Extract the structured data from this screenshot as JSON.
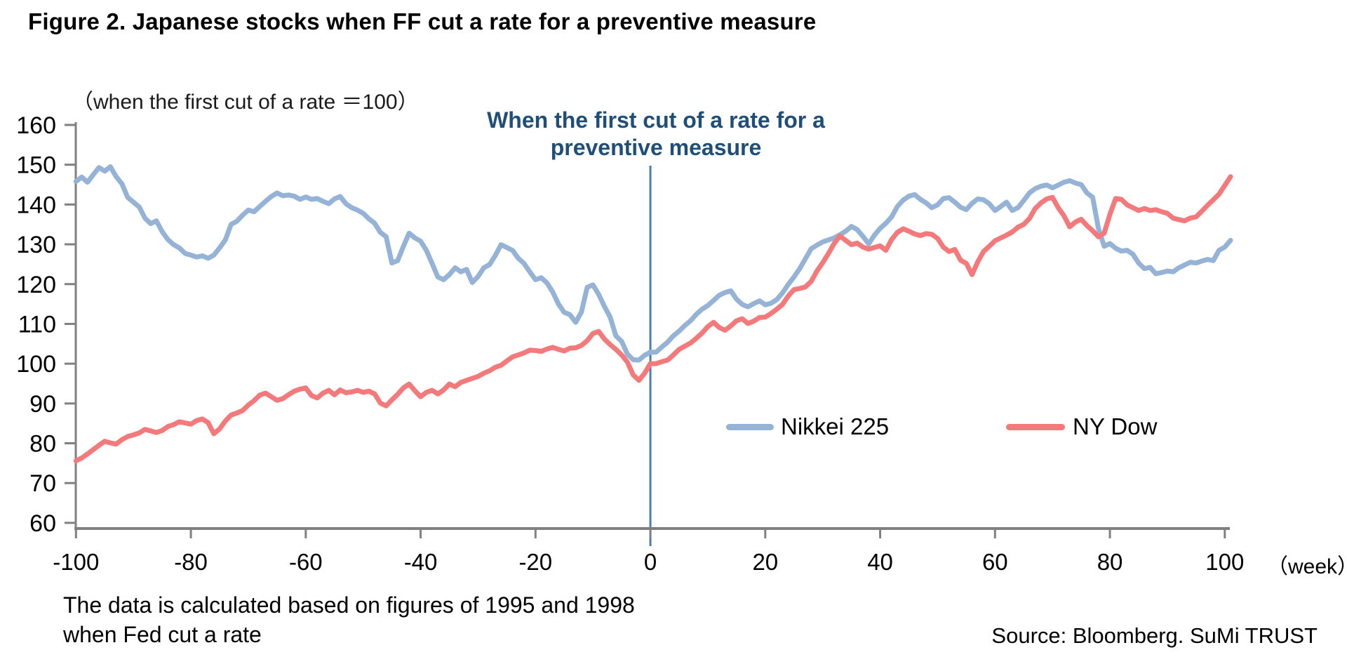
{
  "title": "Figure 2. Japanese stocks when FF cut a rate for a preventive measure",
  "axis_unit_label": "（when the first cut of a rate ＝100）",
  "annotation": {
    "line1": "When the first cut of a rate for a",
    "line2": "preventive measure"
  },
  "week_axis_label": "（week）",
  "footnote": {
    "line1": "The data is calculated based on figures of 1995 and 1998",
    "line2": "when Fed cut a rate"
  },
  "source": "Source: Bloomberg. SuMi TRUST",
  "legend": [
    {
      "label": "Nikkei 225",
      "color": "#95B3D7"
    },
    {
      "label": "NY Dow",
      "color": "#F4797B"
    }
  ],
  "colors": {
    "nikkei_line": "#95B3D7",
    "dow_line": "#F4797B",
    "event_line": "#4A7DB5",
    "axis": "#808080",
    "annotation_text": "#1F4E79",
    "tick_text": "#000000"
  },
  "chart_data": {
    "type": "line",
    "title": "Figure 2. Japanese stocks when FF cut a rate for a preventive measure",
    "xlabel": "week",
    "ylabel": "index (when the first cut of a rate = 100)",
    "xlim": [
      -100,
      100
    ],
    "ylim": [
      60,
      160
    ],
    "x_ticks": [
      -100,
      -80,
      -60,
      -40,
      -20,
      0,
      20,
      40,
      60,
      80,
      100
    ],
    "y_ticks": [
      60,
      70,
      80,
      90,
      100,
      110,
      120,
      130,
      140,
      150,
      160
    ],
    "grid": false,
    "legend_position": "center-right",
    "event_line_x": 0,
    "x_start": -100,
    "x_step": 1,
    "series": [
      {
        "name": "Nikkei 225",
        "color": "#95B3D7",
        "values": [
          145.8,
          146.9,
          145.6,
          147.5,
          149.3,
          148.4,
          149.5,
          147.0,
          145.2,
          141.8,
          140.6,
          139.4,
          136.6,
          135.2,
          135.9,
          133.2,
          131.2,
          129.9,
          129.1,
          127.7,
          127.3,
          126.8,
          127.1,
          126.5,
          127.3,
          129.1,
          131.1,
          135.0,
          135.8,
          137.3,
          138.6,
          138.2,
          139.5,
          140.8,
          142.0,
          142.9,
          142.2,
          142.4,
          142.1,
          141.3,
          141.9,
          141.3,
          141.5,
          140.8,
          140.2,
          141.4,
          142.0,
          140.2,
          139.2,
          138.6,
          137.8,
          136.4,
          135.3,
          133.0,
          131.9,
          125.3,
          125.9,
          129.5,
          132.8,
          131.6,
          130.8,
          128.5,
          125.2,
          121.8,
          121.1,
          122.4,
          124.1,
          123.1,
          123.7,
          120.4,
          121.9,
          124.1,
          124.9,
          127.2,
          129.9,
          129.2,
          128.5,
          126.5,
          125.2,
          123.1,
          121.1,
          121.6,
          120.3,
          118.0,
          115.0,
          112.9,
          112.3,
          110.4,
          113.0,
          119.2,
          119.8,
          117.4,
          114.4,
          111.7,
          107.0,
          105.6,
          102.4,
          101.0,
          100.9,
          102.1,
          102.9,
          102.9,
          104.2,
          105.4,
          107.0,
          108.2,
          109.6,
          110.8,
          112.4,
          113.7,
          114.6,
          115.9,
          117.2,
          117.9,
          118.3,
          116.2,
          114.9,
          114.3,
          115.1,
          115.8,
          114.8,
          115.2,
          116.1,
          117.8,
          119.9,
          121.8,
          123.9,
          126.4,
          128.9,
          129.8,
          130.6,
          131.1,
          131.6,
          132.4,
          133.3,
          134.5,
          133.7,
          132.0,
          130.1,
          132.3,
          134.0,
          135.3,
          136.9,
          139.5,
          141.1,
          142.1,
          142.5,
          141.3,
          140.4,
          139.2,
          139.9,
          141.5,
          141.7,
          140.6,
          139.3,
          138.7,
          140.3,
          141.4,
          141.2,
          140.2,
          138.5,
          139.5,
          140.6,
          138.5,
          139.2,
          141.0,
          142.9,
          144.0,
          144.6,
          144.9,
          144.2,
          144.9,
          145.6,
          146.0,
          145.4,
          145.0,
          142.9,
          141.8,
          134.0,
          129.5,
          130.2,
          129.0,
          128.3,
          128.5,
          127.5,
          125.3,
          123.9,
          124.2,
          122.6,
          122.9,
          123.3,
          123.1,
          124.1,
          124.8,
          125.5,
          125.3,
          125.8,
          126.2,
          125.9,
          128.5,
          129.3,
          131.0
        ]
      },
      {
        "name": "NY Dow",
        "color": "#F4797B",
        "values": [
          75.6,
          76.3,
          77.3,
          78.4,
          79.5,
          80.5,
          80.1,
          79.8,
          80.9,
          81.7,
          82.1,
          82.6,
          83.5,
          83.1,
          82.7,
          83.2,
          84.2,
          84.7,
          85.4,
          85.1,
          84.8,
          85.7,
          86.1,
          85.2,
          82.4,
          83.6,
          85.6,
          87.1,
          87.6,
          88.2,
          89.6,
          90.7,
          92.1,
          92.6,
          91.7,
          90.8,
          91.2,
          92.2,
          93.1,
          93.6,
          93.9,
          92.0,
          91.4,
          92.6,
          93.3,
          92.2,
          93.4,
          92.7,
          92.9,
          93.3,
          92.8,
          93.1,
          92.4,
          90.1,
          89.4,
          90.9,
          92.3,
          93.9,
          94.9,
          93.2,
          91.7,
          92.8,
          93.3,
          92.4,
          93.4,
          94.9,
          94.2,
          95.3,
          95.8,
          96.3,
          96.8,
          97.6,
          98.2,
          99.1,
          99.6,
          100.7,
          101.7,
          102.2,
          102.7,
          103.4,
          103.3,
          103.1,
          103.7,
          104.1,
          103.6,
          103.2,
          103.9,
          104.0,
          104.6,
          105.8,
          107.6,
          108.1,
          106.2,
          104.8,
          103.6,
          102.2,
          100.4,
          97.2,
          95.8,
          97.6,
          100.0,
          100.0,
          100.5,
          100.9,
          102.2,
          103.6,
          104.4,
          105.2,
          106.4,
          107.7,
          109.3,
          110.4,
          109.1,
          108.4,
          109.5,
          110.8,
          111.3,
          110.1,
          110.7,
          111.6,
          111.7,
          112.6,
          113.7,
          114.9,
          117.0,
          118.6,
          118.9,
          119.3,
          120.7,
          123.3,
          125.4,
          127.7,
          130.2,
          132.1,
          131.0,
          129.9,
          130.3,
          129.3,
          128.8,
          129.2,
          129.6,
          128.5,
          131.2,
          133.0,
          133.9,
          133.3,
          132.6,
          132.2,
          132.7,
          132.5,
          131.5,
          129.3,
          128.2,
          128.7,
          126.0,
          125.2,
          122.4,
          125.6,
          128.2,
          129.5,
          130.9,
          131.6,
          132.3,
          133.1,
          134.3,
          135.0,
          136.5,
          139.0,
          140.4,
          141.4,
          141.8,
          139.2,
          137.2,
          134.4,
          135.6,
          136.3,
          134.7,
          133.4,
          131.9,
          132.8,
          137.5,
          141.5,
          141.3,
          139.9,
          139.2,
          138.5,
          139.0,
          138.5,
          138.7,
          138.2,
          137.8,
          136.6,
          136.2,
          135.9,
          136.6,
          136.9,
          138.3,
          139.8,
          141.2,
          142.6,
          144.8,
          147.0
        ]
      }
    ]
  }
}
